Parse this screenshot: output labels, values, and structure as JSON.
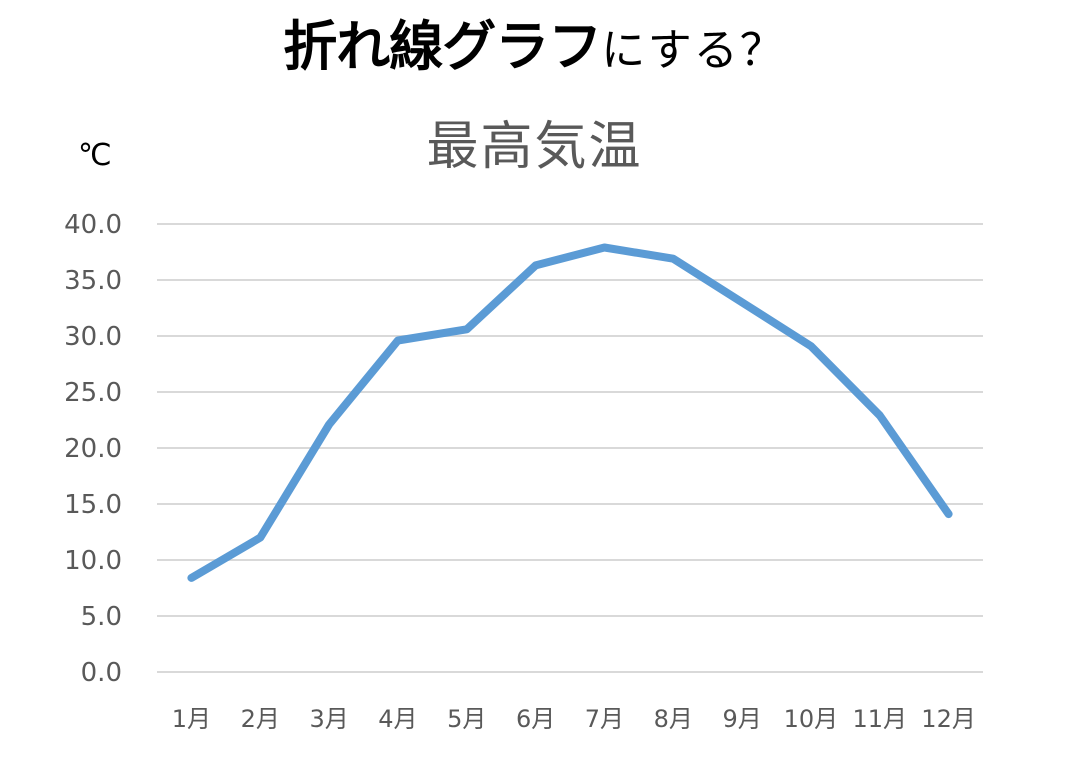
{
  "headline": {
    "strong": "折れ線グラフ",
    "light": "にする？"
  },
  "chart_data": {
    "type": "line",
    "title": "最高気温",
    "ylabel": "℃",
    "xlabel": "",
    "categories": [
      "1月",
      "2月",
      "3月",
      "4月",
      "5月",
      "6月",
      "7月",
      "8月",
      "9月",
      "10月",
      "11月",
      "12月"
    ],
    "series": [
      {
        "name": "最高気温",
        "color": "#5B9BD5",
        "values": [
          8.4,
          12.0,
          22.1,
          29.6,
          30.6,
          36.3,
          37.9,
          36.9,
          33.0,
          29.1,
          22.9,
          14.1
        ]
      }
    ],
    "ylim": [
      0,
      40
    ],
    "ytick_step": 5,
    "ytick_labels": [
      "0.0",
      "5.0",
      "10.0",
      "15.0",
      "20.0",
      "25.0",
      "30.0",
      "35.0",
      "40.0"
    ],
    "grid": true,
    "legend": "none"
  },
  "colors": {
    "line": "#5B9BD5",
    "grid": "#D9D9D9",
    "tick_text": "#595959",
    "title_text": "#595959"
  }
}
